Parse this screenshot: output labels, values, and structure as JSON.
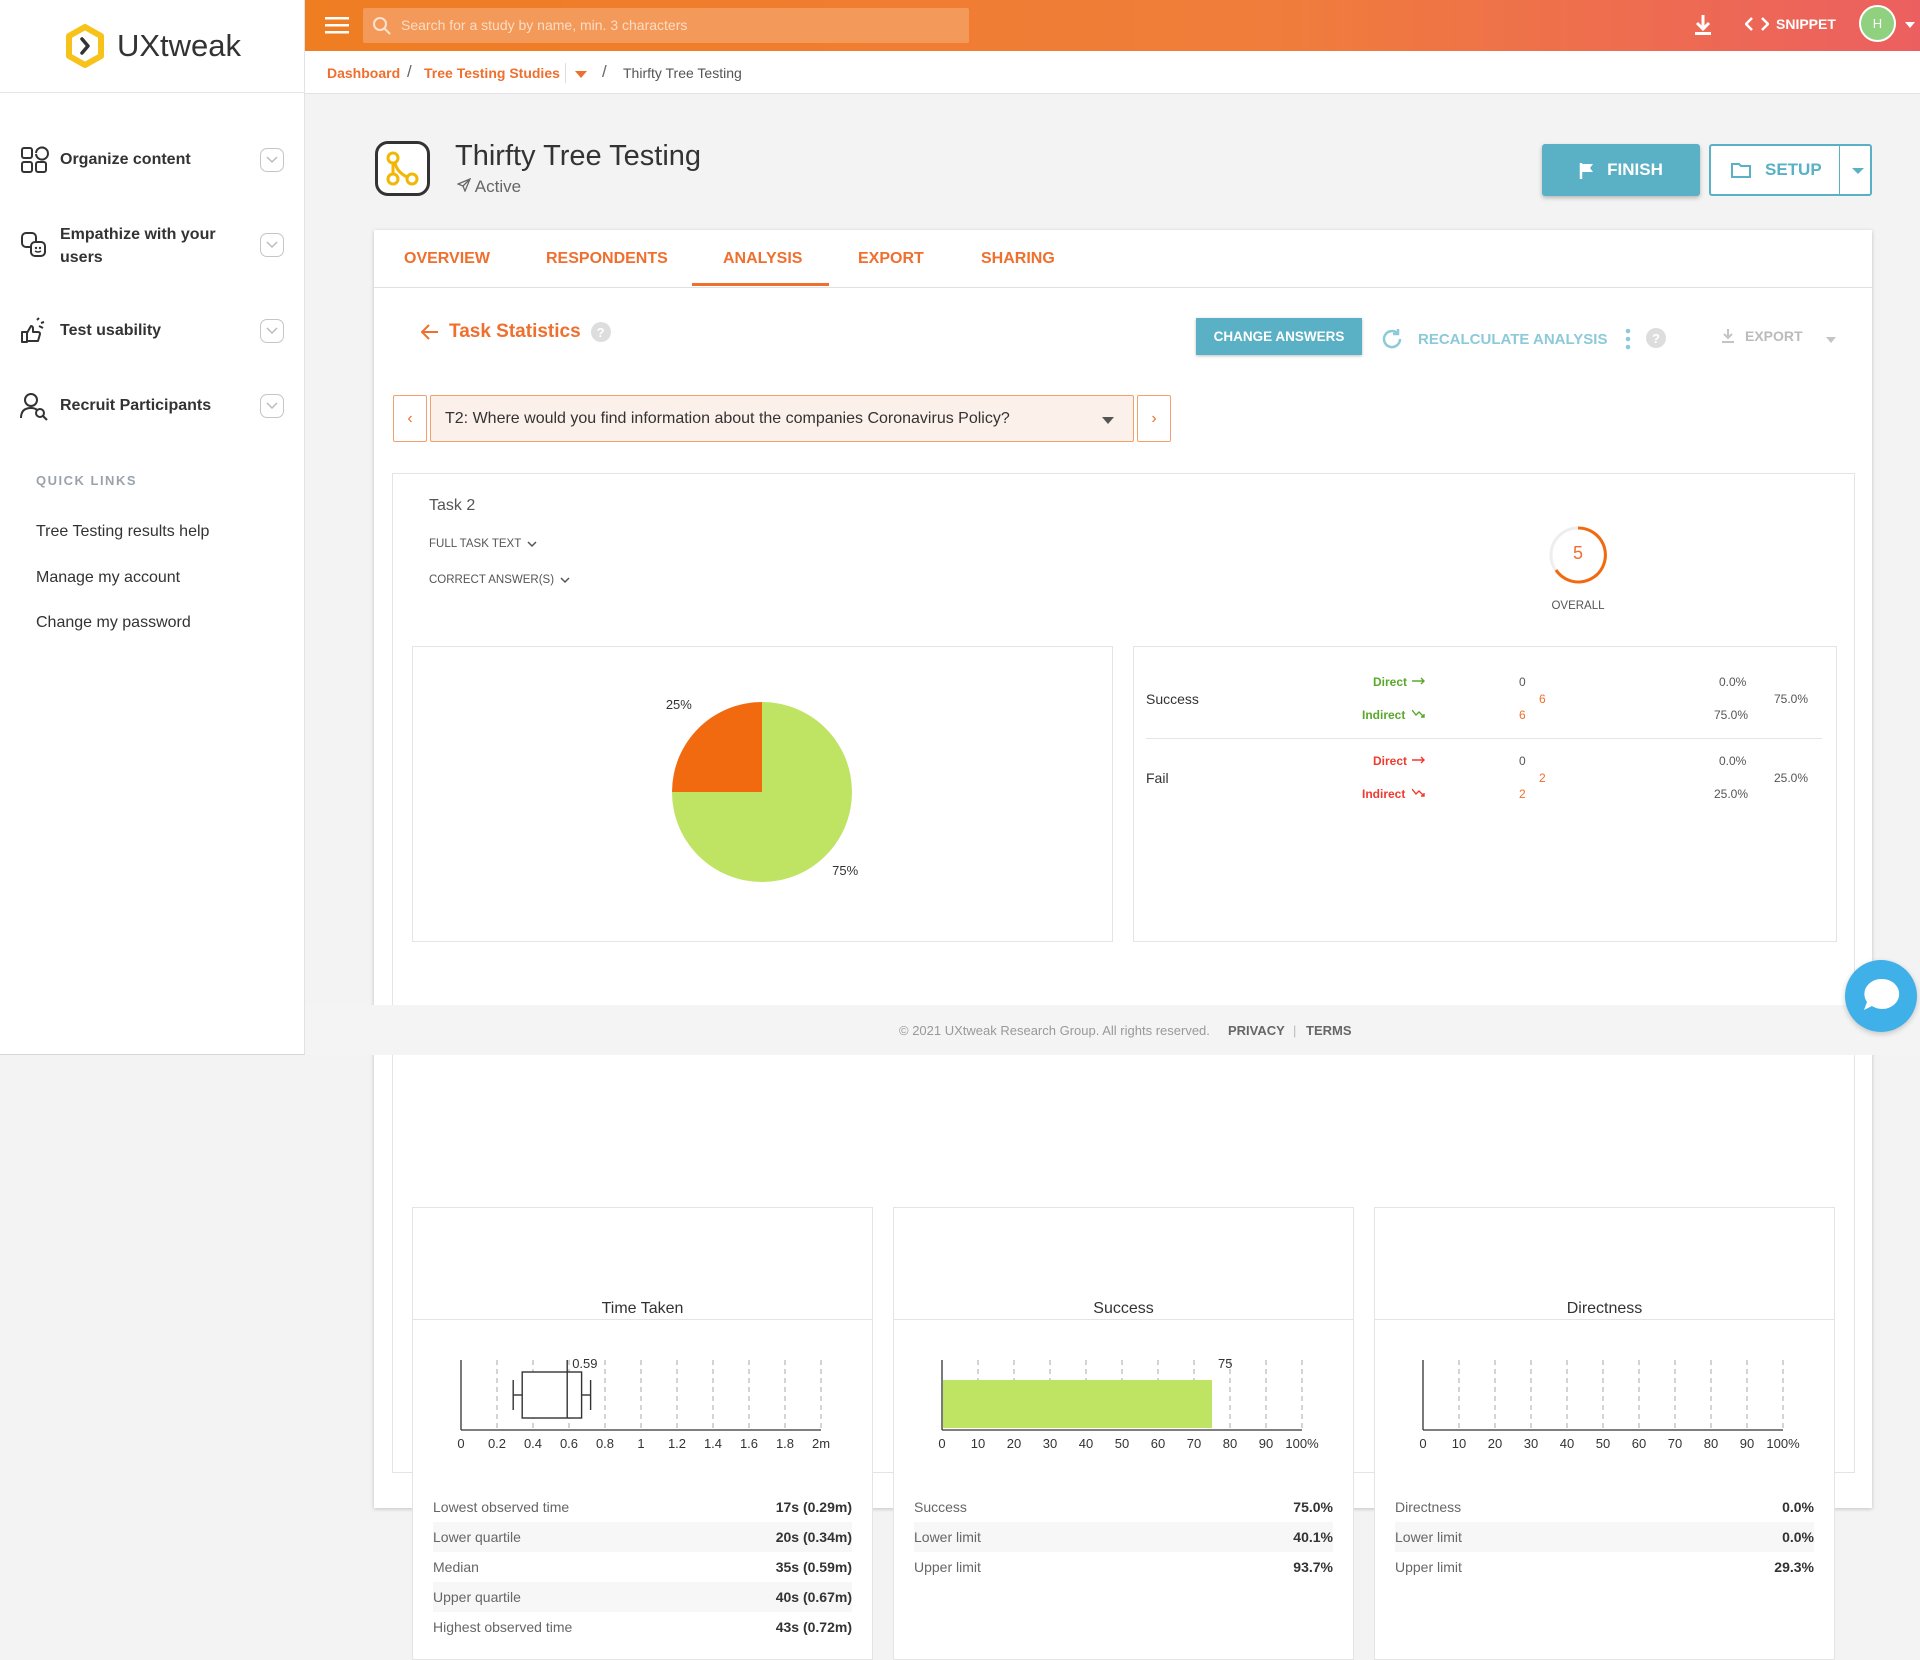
{
  "app": {
    "logo_text": "UXtweak"
  },
  "sidebar": {
    "items": [
      {
        "label_line1": "Organize content",
        "label_line2": ""
      },
      {
        "label_line1": "Empathize with your",
        "label_line2": "users"
      },
      {
        "label_line1": "Test usability",
        "label_line2": ""
      },
      {
        "label_line1": "Recruit Participants",
        "label_line2": ""
      }
    ],
    "quick_links_heading": "QUICK LINKS",
    "quick_links": [
      "Tree Testing results help",
      "Manage my account",
      "Change my password"
    ]
  },
  "topbar": {
    "search_placeholder": "Search for a study by name, min. 3 characters",
    "snippet_label": "SNIPPET",
    "avatar_initial": "H"
  },
  "breadcrumb": {
    "items": [
      "Dashboard",
      "Tree Testing Studies",
      "Thirfty Tree Testing"
    ]
  },
  "study": {
    "title": "Thirfty Tree Testing",
    "status": "Active"
  },
  "actions": {
    "finish_label": "FINISH",
    "setup_label": "SETUP"
  },
  "tabs": [
    "OVERVIEW",
    "RESPONDENTS",
    "ANALYSIS",
    "EXPORT",
    "SHARING"
  ],
  "active_tab": "ANALYSIS",
  "task_stats": {
    "title": "Task Statistics",
    "change_answers_label": "CHANGE ANSWERS",
    "recalculate_label": "RECALCULATE ANALYSIS",
    "export_label": "EXPORT",
    "selected_task": "T2: Where would you find information about the companies Coronavirus Policy?",
    "task_name": "Task 2",
    "full_task_text_label": "FULL TASK TEXT",
    "correct_answers_label": "CORRECT ANSWER(S)",
    "overall_score": "5",
    "overall_label": "OVERALL"
  },
  "results": {
    "success": {
      "label": "Success",
      "total_count": "6",
      "total_pct": "75.0%",
      "direct": {
        "label": "Direct",
        "count": "0",
        "pct": "0.0%"
      },
      "indirect": {
        "label": "Indirect",
        "count": "6",
        "pct": "75.0%"
      }
    },
    "fail": {
      "label": "Fail",
      "total_count": "2",
      "total_pct": "25.0%",
      "direct": {
        "label": "Direct",
        "count": "0",
        "pct": "0.0%"
      },
      "indirect": {
        "label": "Indirect",
        "count": "2",
        "pct": "25.0%"
      }
    }
  },
  "chart_data": [
    {
      "type": "pie",
      "labels": [
        "Success",
        "Fail"
      ],
      "values": [
        75,
        25
      ],
      "value_labels": [
        "75%",
        "25%"
      ],
      "colors": [
        "#bfe362",
        "#f26a10"
      ]
    },
    {
      "type": "boxplot",
      "title": "Time Taken",
      "xlim": [
        0,
        2
      ],
      "ticks": [
        "0",
        "0.2",
        "0.4",
        "0.6",
        "0.8",
        "1",
        "1.2",
        "1.4",
        "1.6",
        "1.8",
        "2m"
      ],
      "min": 0.29,
      "q1": 0.34,
      "median": 0.59,
      "q3": 0.67,
      "max": 0.72,
      "median_label": "0.59"
    },
    {
      "type": "bar",
      "title": "Success",
      "orientation": "horizontal",
      "xlim": [
        0,
        100
      ],
      "ticks": [
        "0",
        "10",
        "20",
        "30",
        "40",
        "50",
        "60",
        "70",
        "80",
        "90",
        "100%"
      ],
      "value": 75,
      "value_label": "75",
      "color": "#bfe362"
    },
    {
      "type": "bar",
      "title": "Directness",
      "orientation": "horizontal",
      "xlim": [
        0,
        100
      ],
      "ticks": [
        "0",
        "10",
        "20",
        "30",
        "40",
        "50",
        "60",
        "70",
        "80",
        "90",
        "100%"
      ],
      "value": 0,
      "value_label": ""
    }
  ],
  "time_stats": [
    {
      "label": "Lowest observed time",
      "value": "17s (0.29m)"
    },
    {
      "label": "Lower quartile",
      "value": "20s (0.34m)"
    },
    {
      "label": "Median",
      "value": "35s (0.59m)"
    },
    {
      "label": "Upper quartile",
      "value": "40s (0.67m)"
    },
    {
      "label": "Highest observed time",
      "value": "43s (0.72m)"
    }
  ],
  "success_stats": [
    {
      "label": "Success",
      "value": "75.0%"
    },
    {
      "label": "Lower limit",
      "value": "40.1%"
    },
    {
      "label": "Upper limit",
      "value": "93.7%"
    }
  ],
  "directness_stats": [
    {
      "label": "Directness",
      "value": "0.0%"
    },
    {
      "label": "Lower limit",
      "value": "0.0%"
    },
    {
      "label": "Upper limit",
      "value": "29.3%"
    }
  ],
  "footer": {
    "copyright": "© 2021 UXtweak Research Group. All rights reserved.",
    "privacy": "PRIVACY",
    "terms": "TERMS"
  },
  "colors": {
    "accent": "#ef6f2e",
    "teal": "#5ab0c5",
    "success_green": "#bfe362",
    "fail_orange": "#f26a10"
  }
}
